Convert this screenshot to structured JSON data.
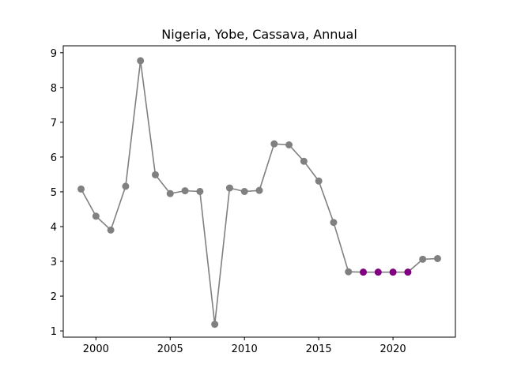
{
  "chart_data": {
    "type": "line",
    "title": "Nigeria, Yobe, Cassava, Annual",
    "xlabel": "",
    "ylabel": "",
    "xlim": [
      1997.8,
      2024.2
    ],
    "ylim": [
      0.82,
      9.2
    ],
    "x_ticks": [
      2000,
      2005,
      2010,
      2015,
      2020
    ],
    "y_ticks": [
      1,
      2,
      3,
      4,
      5,
      6,
      7,
      8,
      9
    ],
    "grid": false,
    "colors": {
      "line": "#808080",
      "marker": "#808080",
      "highlight_marker": "#800080"
    },
    "series": [
      {
        "x": [
          1999,
          2000,
          2001,
          2002,
          2003,
          2004,
          2005,
          2006,
          2007,
          2008,
          2009,
          2010,
          2011,
          2012,
          2013,
          2014,
          2015,
          2016,
          2017,
          2018,
          2019,
          2020,
          2021,
          2022,
          2023
        ],
        "values": [
          5.08,
          4.3,
          3.9,
          5.16,
          8.77,
          5.49,
          4.95,
          5.03,
          5.01,
          1.19,
          5.11,
          5.01,
          5.04,
          6.38,
          6.35,
          5.88,
          5.31,
          4.12,
          2.7,
          2.69,
          2.69,
          2.69,
          2.69,
          3.06,
          3.08
        ],
        "highlighted_x": [
          2018,
          2019,
          2020,
          2021
        ]
      }
    ]
  }
}
